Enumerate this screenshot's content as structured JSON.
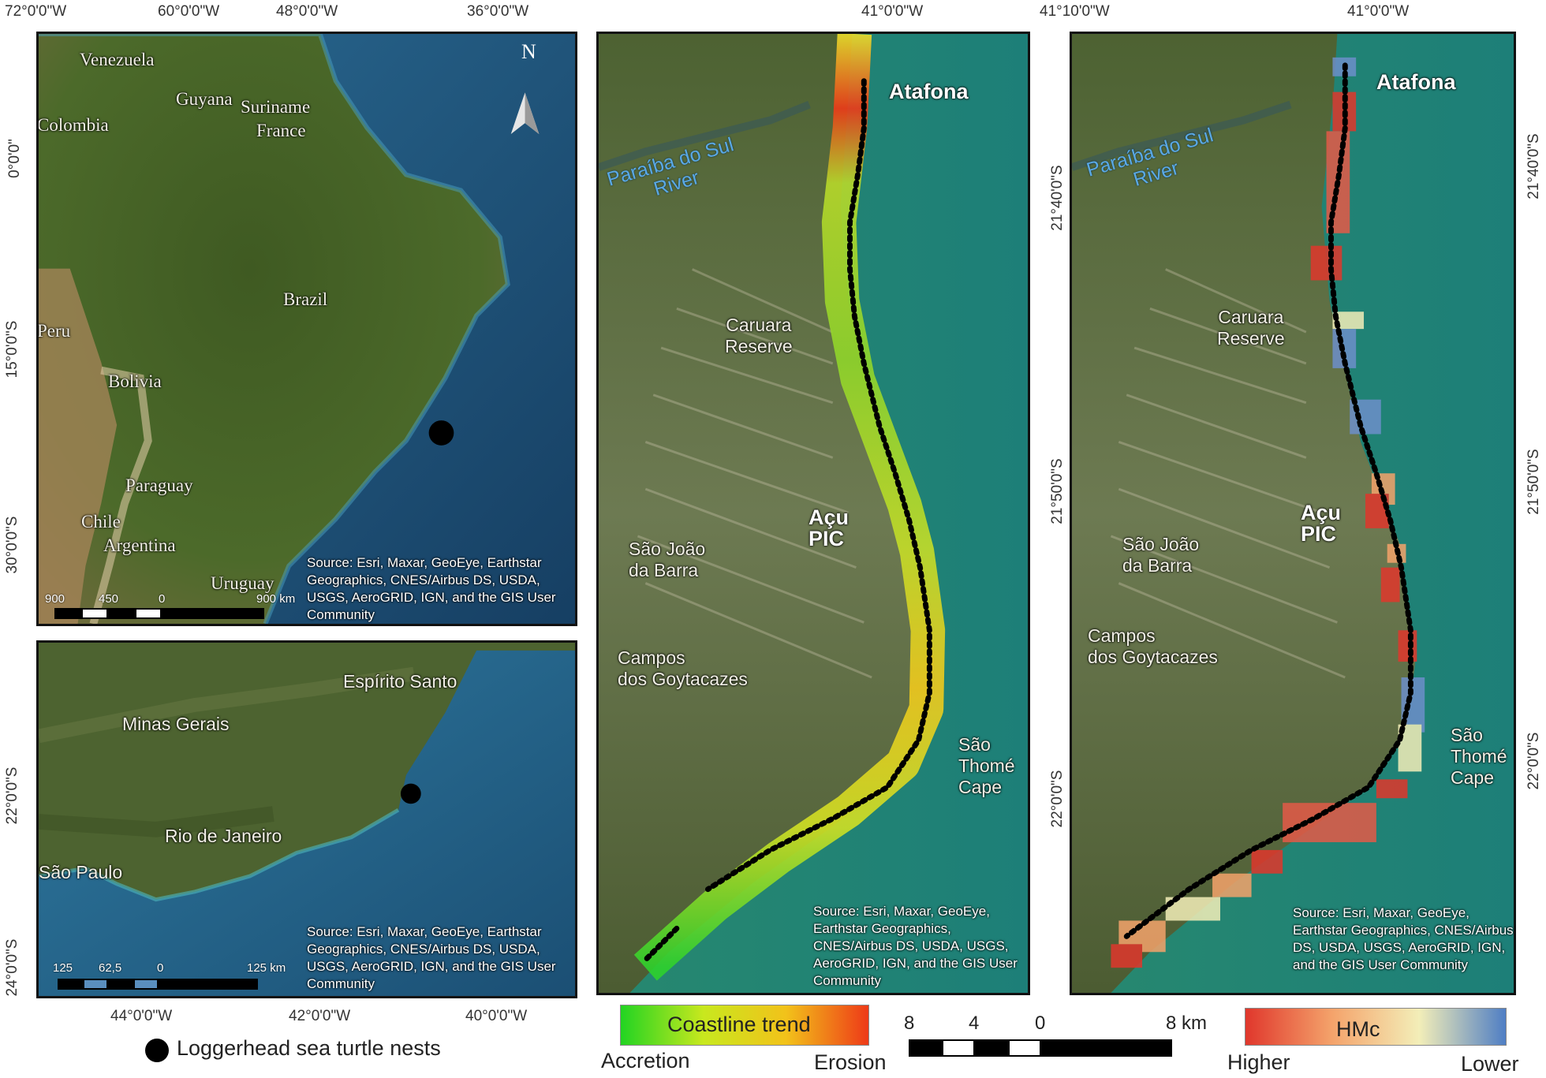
{
  "overview_map": {
    "top_labels": [
      "72°0'0\"W",
      "60°0'0\"W",
      "48°0'0\"W",
      "36°0'0\"W"
    ],
    "left_labels": [
      "0°0'0\"",
      "15°0'0\"S",
      "30°0'0\"S"
    ],
    "places": [
      "Venezuela",
      "Guyana",
      "Suriname",
      "France",
      "Colombia",
      "Brazil",
      "Peru",
      "Bolivia",
      "Paraguay",
      "Chile",
      "Argentina",
      "Uruguay"
    ],
    "north_label": "N",
    "source": "Source: Esri, Maxar, GeoEye, Earthstar Geographics, CNES/Airbus DS, USDA, USGS, AeroGRID, IGN, and the GIS User Community",
    "scale": [
      "900",
      "450",
      "0",
      "900 km"
    ]
  },
  "regional_map": {
    "left_labels": [
      "22°0'0\"S",
      "24°0'0\"S"
    ],
    "bottom_labels": [
      "44°0'0\"W",
      "42°0'0\"W",
      "40°0'0\"W"
    ],
    "places": [
      "Espírito Santo",
      "Minas Gerais",
      "Rio de Janeiro",
      "São Paulo"
    ],
    "source": "Source: Esri, Maxar, GeoEye, Earthstar Geographics, CNES/Airbus DS, USDA, USGS, AeroGRID, IGN, and the GIS User Community",
    "scale": [
      "125",
      "62,5",
      "0",
      "125 km"
    ]
  },
  "legend_nests": "Loggerhead sea turtle nests",
  "trend_map": {
    "top_label": "41°0'0\"W",
    "right_labels": [
      "21°40'0\"S",
      "21°50'0\"S",
      "22°0'0\"S"
    ],
    "places": {
      "atafona": "Atafona",
      "river": [
        "Paraíba do Sul",
        "River"
      ],
      "caruara": [
        "Caruara",
        "Reserve"
      ],
      "acu": [
        "Açu",
        "PIC"
      ],
      "sjb": [
        "São João",
        "da Barra"
      ],
      "campos": [
        "Campos",
        "dos Goytacazes"
      ],
      "cape": [
        "São",
        "Thomé",
        "Cape"
      ]
    },
    "source": "Source: Esri, Maxar, GeoEye, Earthstar Geographics, CNES/Airbus DS, USDA, USGS, AeroGRID, IGN, and the GIS User Community"
  },
  "hmc_map": {
    "top_labels": [
      "41°10'0\"W",
      "41°0'0\"W"
    ],
    "right_labels": [
      "21°40'0\"S",
      "21°50'0\"S",
      "22°0'0\"S"
    ],
    "places": {
      "atafona": "Atafona",
      "river": [
        "Paraíba do Sul",
        "River"
      ],
      "caruara": [
        "Caruara",
        "Reserve"
      ],
      "acu": [
        "Açu",
        "PIC"
      ],
      "sjb": [
        "São João",
        "da Barra"
      ],
      "campos": [
        "Campos",
        "dos Goytacazes"
      ],
      "cape": [
        "São",
        "Thomé",
        "Cape"
      ]
    },
    "source": "Source: Esri, Maxar, GeoEye, Earthstar Geographics, CNES/Airbus DS, USDA, USGS, AeroGRID, IGN, and the GIS User Community"
  },
  "trend_legend": {
    "title": "Coastline trend",
    "low": "Accretion",
    "high": "Erosion",
    "colors": [
      "#22d422",
      "#c8e81e",
      "#f2c21a",
      "#ee3a18"
    ]
  },
  "hmc_legend": {
    "title": "HMc",
    "low": "Higher",
    "high": "Lower",
    "colors": [
      "#e0372c",
      "#f4a36b",
      "#f3eeb8",
      "#4f7ec4"
    ]
  },
  "main_scale": [
    "8",
    "4",
    "0",
    "8 km"
  ],
  "colors": {
    "ocean_deep": "#1d4e75",
    "ocean_mid": "#2d6f93",
    "land": "#4a5e2a",
    "coast_water": "#1f8a7e",
    "nest": "#000000"
  }
}
